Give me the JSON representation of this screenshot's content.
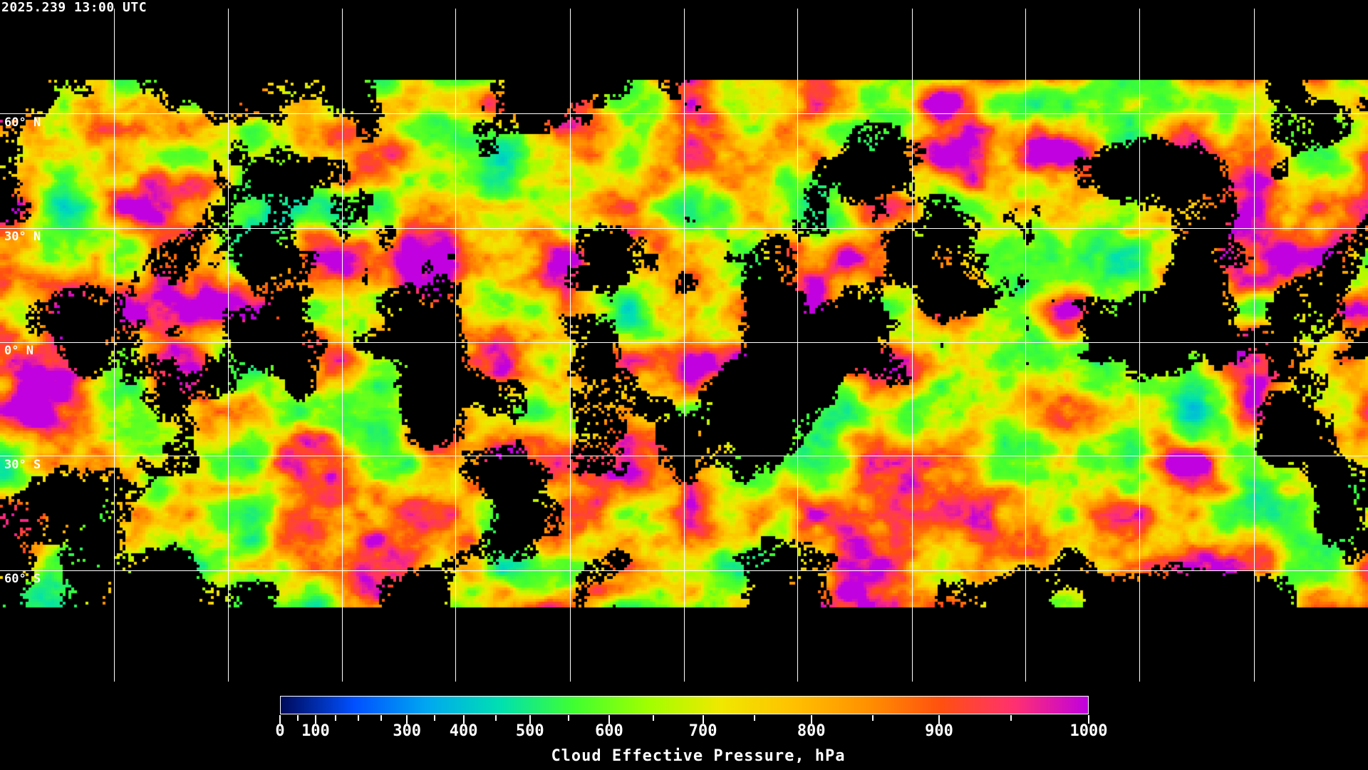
{
  "timestamp": "2025.239 13:00 UTC",
  "map": {
    "latitude_labels": [
      "60° N",
      "30° N",
      "0° N",
      "30° S",
      "60° S"
    ],
    "gridlines": true,
    "coastlines_color": "#ffffff",
    "no_cloud_color": "#000000"
  },
  "colorbar": {
    "title": "Cloud Effective Pressure, hPa",
    "min": 0,
    "max": 1000,
    "tick_labels": [
      "0",
      "100",
      "300",
      "400",
      "500",
      "600",
      "700",
      "800",
      "900",
      "1000"
    ],
    "colors": [
      "#000a5a",
      "#0050ff",
      "#00a8f0",
      "#00e0b0",
      "#40ff30",
      "#a0ff00",
      "#f0e800",
      "#ffc000",
      "#ff9000",
      "#ff5010",
      "#ff3070",
      "#c000e0"
    ]
  }
}
